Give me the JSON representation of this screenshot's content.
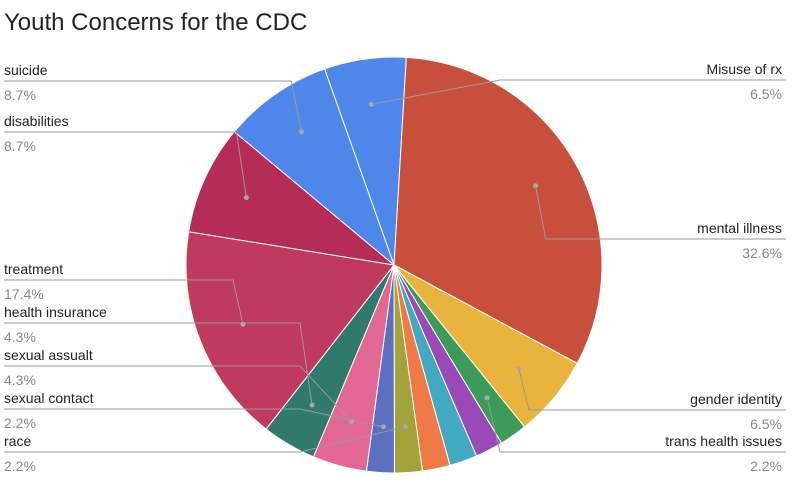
{
  "chart_data": {
    "type": "pie",
    "title": "Youth Concerns for the CDC",
    "slices": [
      {
        "label": "Misuse of rx",
        "value": 6.5,
        "pct_label": "6.5%",
        "color": "#4f86ea"
      },
      {
        "label": "mental illness",
        "value": 32.6,
        "pct_label": "32.6%",
        "color": "#c94f3d"
      },
      {
        "label": "gender identity",
        "value": 6.5,
        "pct_label": "6.5%",
        "color": "#e9b43d"
      },
      {
        "label": "trans health issues",
        "value": 2.2,
        "pct_label": "2.2%",
        "color": "#3c9b58"
      },
      {
        "label": "",
        "value": 2.2,
        "pct_label": "",
        "color": "#9a4ab7"
      },
      {
        "label": "",
        "value": 2.2,
        "pct_label": "",
        "color": "#43a9c2"
      },
      {
        "label": "",
        "value": 2.2,
        "pct_label": "",
        "color": "#ee7a45"
      },
      {
        "label": "race",
        "value": 2.2,
        "pct_label": "2.2%",
        "color": "#a4a33b"
      },
      {
        "label": "sexual contact",
        "value": 2.2,
        "pct_label": "2.2%",
        "color": "#5d6fc1"
      },
      {
        "label": "sexual assualt",
        "value": 4.3,
        "pct_label": "4.3%",
        "color": "#e26795"
      },
      {
        "label": "health insurance",
        "value": 4.3,
        "pct_label": "4.3%",
        "color": "#2f7a6a"
      },
      {
        "label": "treatment",
        "value": 17.4,
        "pct_label": "17.4%",
        "color": "#c0395e"
      },
      {
        "label": "disabilities",
        "value": 8.7,
        "pct_label": "8.7%",
        "color": "#b52d56"
      },
      {
        "label": "suicide",
        "value": 8.7,
        "pct_label": "8.7%",
        "color": "#4f86ea"
      }
    ],
    "legend": "none"
  }
}
